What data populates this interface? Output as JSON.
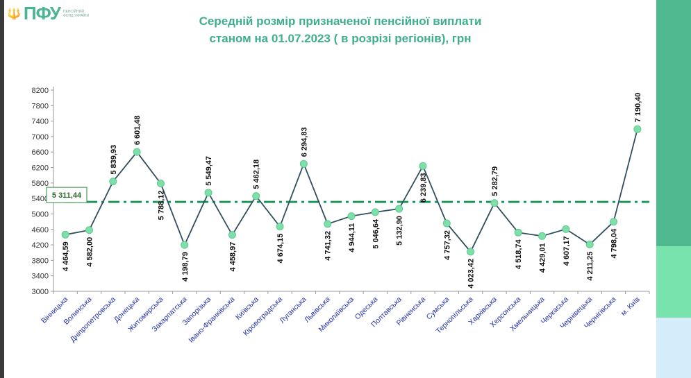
{
  "logo": {
    "text": "ПФУ",
    "subtitle": "ПЕНСІЙНИЙ ФОНД УКРАЇНИ"
  },
  "chart_data": {
    "type": "line",
    "title": "Середній розмір призначеної пенсійної виплати станом на 01.07.2023 ( в розрізі регіонів), грн",
    "title_lines": [
      "Середній розмір призначеної пенсійної виплати",
      "станом на 01.07.2023 ( в розрізі регіонів), грн"
    ],
    "categories": [
      "Вінницька",
      "Волинська",
      "Дніпропетровська",
      "Донецька",
      "Житомирська",
      "Закарпатська",
      "Запорізька",
      "Івано-Франківська",
      "Київська",
      "Кіровоградська",
      "Луганська",
      "Львівська",
      "Миколаївська",
      "Одеська",
      "Полтавська",
      "Рівненська",
      "Сумська",
      "Тернопільська",
      "Харківська",
      "Херсонська",
      "Хмельницька",
      "Черкаська",
      "Чернівецька",
      "Чернігівська",
      "м. Київ"
    ],
    "values": [
      4464.59,
      4582.0,
      5839.93,
      6601.48,
      5788.12,
      4198.79,
      5549.47,
      4458.97,
      5462.18,
      4674.15,
      6294.83,
      4741.32,
      4944.11,
      5046.64,
      5132.9,
      6239.83,
      4757.32,
      4023.42,
      5282.79,
      4518.74,
      4429.01,
      4607.17,
      4211.25,
      4798.04,
      7190.4
    ],
    "data_labels": [
      "4 464,59",
      "4 582,00",
      "5 839,93",
      "6 601,48",
      "5 788,12",
      "4 198,79",
      "5 549,47",
      "4 458,97",
      "5 462,18",
      "4 674,15",
      "6 294,83",
      "4 741,32",
      "4 944,11",
      "5 046,64",
      "5 132,90",
      "6 239,83",
      "4 757,32",
      "4 023,42",
      "5 282,79",
      "4 518,74",
      "4 429,01",
      "4 607,17",
      "4 211,25",
      "4 798,04",
      "7 190,40"
    ],
    "label_above": [
      false,
      false,
      true,
      true,
      false,
      false,
      true,
      false,
      true,
      false,
      true,
      false,
      false,
      false,
      false,
      false,
      false,
      false,
      true,
      false,
      false,
      false,
      false,
      false,
      true
    ],
    "average": {
      "value": 5311.44,
      "label": "5 311,44"
    },
    "yticks": [
      3000,
      3400,
      3800,
      4200,
      4600,
      5000,
      5400,
      5800,
      6200,
      6600,
      7000,
      7400,
      7800,
      8200
    ],
    "ylim": [
      3000,
      8200
    ],
    "grid": false,
    "colors": {
      "line": "#2f4f5f",
      "marker": "#7ee0a8",
      "average": "#1f9a5a",
      "title": "#3fae8e"
    }
  }
}
